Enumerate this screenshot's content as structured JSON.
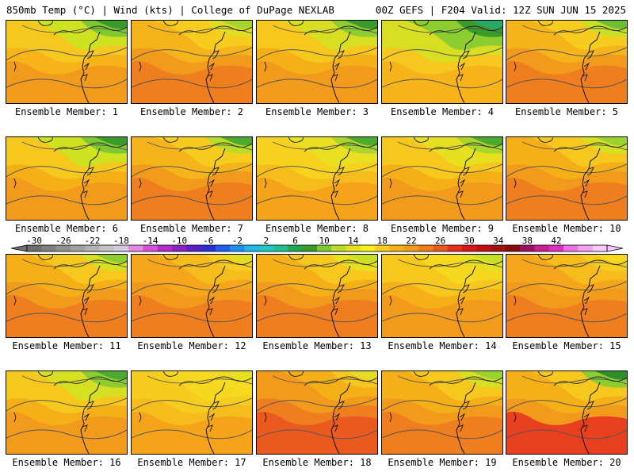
{
  "header": {
    "title_left": "850mb Temp (°C) | Wind (kts) | College of DuPage NEXLAB",
    "title_right": "00Z GEFS | F204 Valid: 12Z SUN JUN 15 2025"
  },
  "panels": [
    {
      "label": "Ensemble Member: 1",
      "colors": [
        "#f29a1c",
        "#f7b318",
        "#f5c81f",
        "#cfe21f",
        "#7ec832",
        "#3a9a2a"
      ]
    },
    {
      "label": "Ensemble Member: 2",
      "colors": [
        "#ef7e1e",
        "#f29a1c",
        "#f5b51a",
        "#f6cc1e",
        "#e0dd22",
        "#a7d52c"
      ]
    },
    {
      "label": "Ensemble Member: 3",
      "colors": [
        "#f29a1c",
        "#f5b018",
        "#f6c81d",
        "#d8df22",
        "#8ccd30",
        "#3a9a2a"
      ]
    },
    {
      "label": "Ensemble Member: 4",
      "colors": [
        "#f6b41a",
        "#f5c71f",
        "#d8df22",
        "#8ccd30",
        "#3a9a2a",
        "#2aa86a"
      ]
    },
    {
      "label": "Ensemble Member: 5",
      "colors": [
        "#ef7e1e",
        "#f29a1c",
        "#f5b51a",
        "#f6cc1e",
        "#c7df25",
        "#6fbf35"
      ]
    },
    {
      "label": "Ensemble Member: 6",
      "colors": [
        "#f29a1c",
        "#f5b018",
        "#f6c81d",
        "#cfe21f",
        "#7ec832",
        "#3a9a2a"
      ]
    },
    {
      "label": "Ensemble Member: 7",
      "colors": [
        "#ef7e1e",
        "#f29a1c",
        "#f5b51a",
        "#f6cc1e",
        "#b9dc28",
        "#4caa2e"
      ]
    },
    {
      "label": "Ensemble Member: 8",
      "colors": [
        "#f5a41a",
        "#f6bc1b",
        "#f6d21e",
        "#e8e020",
        "#a9d52c",
        "#4caa2e"
      ]
    },
    {
      "label": "Ensemble Member: 9",
      "colors": [
        "#f29a1c",
        "#f5b018",
        "#f6c81d",
        "#e6e021",
        "#a9d52c",
        "#4caa2e"
      ]
    },
    {
      "label": "Ensemble Member: 10",
      "colors": [
        "#ef7e1e",
        "#f29a1c",
        "#f5b018",
        "#f6c81d",
        "#d6df22",
        "#9ad22e"
      ]
    },
    {
      "label": "Ensemble Member: 11",
      "colors": [
        "#ef7e1e",
        "#f29a1c",
        "#f5b018",
        "#f6c81d",
        "#d6df22",
        "#8ccd30"
      ]
    },
    {
      "label": "Ensemble Member: 12",
      "colors": [
        "#ef7e1e",
        "#f29a1c",
        "#f5a61a",
        "#f6bc1b",
        "#f6cc1e",
        "#e0dd22"
      ]
    },
    {
      "label": "Ensemble Member: 13",
      "colors": [
        "#ef7e1e",
        "#f29a1c",
        "#f5b018",
        "#f6c81d",
        "#e6e021",
        "#c7df25"
      ]
    },
    {
      "label": "Ensemble Member: 14",
      "colors": [
        "#f29a1c",
        "#f5b018",
        "#f6c81d",
        "#f6d81f",
        "#e6e021",
        "#c7df25"
      ]
    },
    {
      "label": "Ensemble Member: 15",
      "colors": [
        "#ef7e1e",
        "#f29a1c",
        "#f5a61a",
        "#f6bc1b",
        "#f6cc1e",
        "#f6d81f"
      ]
    },
    {
      "label": "Ensemble Member: 16",
      "colors": [
        "#f29a1c",
        "#f5b018",
        "#f6c81d",
        "#d6df22",
        "#8ccd30",
        "#4caa2e"
      ]
    },
    {
      "label": "Ensemble Member: 17",
      "colors": [
        "#f5a41a",
        "#f6bc1b",
        "#f6cc1e",
        "#f6d81f",
        "#f6dc20",
        "#e6e021"
      ]
    },
    {
      "label": "Ensemble Member: 18",
      "colors": [
        "#ea5a1e",
        "#ef7e1e",
        "#f29a1c",
        "#f5b018",
        "#f6c81d",
        "#e0dd22"
      ]
    },
    {
      "label": "Ensemble Member: 19",
      "colors": [
        "#ef7e1e",
        "#f29a1c",
        "#f5b018",
        "#f6c81d",
        "#d6df22",
        "#9ad22e"
      ]
    },
    {
      "label": "Ensemble Member: 20",
      "colors": [
        "#e8401e",
        "#f29a1c",
        "#f5b018",
        "#f6c81d",
        "#8ccd30",
        "#2f8f2a"
      ]
    }
  ],
  "colorbar": {
    "tick_labels": [
      "-30",
      "-26",
      "-22",
      "-18",
      "-14",
      "-10",
      "-6",
      "-2",
      "2",
      "6",
      "10",
      "14",
      "18",
      "22",
      "26",
      "30",
      "34",
      "38",
      "42"
    ],
    "colors": [
      "#6e6e6e",
      "#7f7f7f",
      "#909090",
      "#a1a1a1",
      "#b2b2b2",
      "#c3c3c3",
      "#d4c8e6",
      "#e08ae0",
      "#d850d8",
      "#b230c8",
      "#8a24c0",
      "#5a20c0",
      "#2a30d8",
      "#2060f0",
      "#2090f0",
      "#20b8e8",
      "#20c8c0",
      "#20c090",
      "#20a850",
      "#3a9a2a",
      "#7ec832",
      "#b9dc28",
      "#e6e021",
      "#f8ee1a",
      "#f6cc1e",
      "#f5b018",
      "#f29a1c",
      "#ef7e1e",
      "#ea5a1e",
      "#e6301e",
      "#d81818",
      "#c01010",
      "#a01010",
      "#880a0a",
      "#a01060",
      "#c82090",
      "#e030c0",
      "#f070e0",
      "#f4a0f0",
      "#f8c8f8"
    ]
  }
}
